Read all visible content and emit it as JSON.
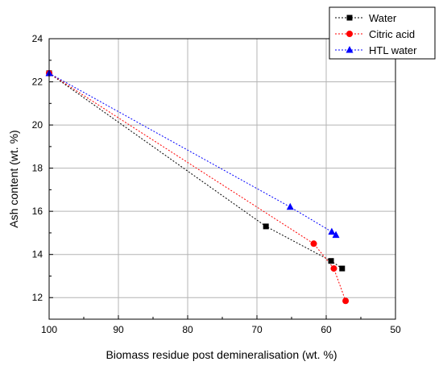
{
  "chart_data": {
    "type": "scatter",
    "xlabel": "Biomass residue post demineralisation (wt. %)",
    "ylabel": "Ash content (wt. %)",
    "xlim": [
      100,
      50
    ],
    "ylim": [
      11,
      24
    ],
    "x_ticks": [
      "100",
      "90",
      "80",
      "70",
      "60",
      "50"
    ],
    "y_ticks": [
      "12",
      "14",
      "16",
      "18",
      "20",
      "22",
      "24"
    ],
    "grid": true,
    "legend_position": "top-right",
    "series": [
      {
        "name": "Water",
        "color": "#000000",
        "marker": "square",
        "line": "dotted",
        "points": [
          [
            100,
            22.4
          ],
          [
            68.7,
            15.3
          ],
          [
            59.3,
            13.7
          ],
          [
            57.7,
            13.35
          ]
        ]
      },
      {
        "name": "Citric acid",
        "color": "#ff0000",
        "marker": "circle",
        "line": "dotted",
        "points": [
          [
            100,
            22.4
          ],
          [
            61.8,
            14.5
          ],
          [
            58.9,
            13.35
          ],
          [
            57.2,
            11.85
          ]
        ]
      },
      {
        "name": "HTL water",
        "color": "#0000ff",
        "marker": "triangle",
        "line": "dotted",
        "points": [
          [
            100,
            22.4
          ],
          [
            65.2,
            16.2
          ],
          [
            59.2,
            15.05
          ],
          [
            58.6,
            14.9
          ]
        ]
      }
    ]
  }
}
